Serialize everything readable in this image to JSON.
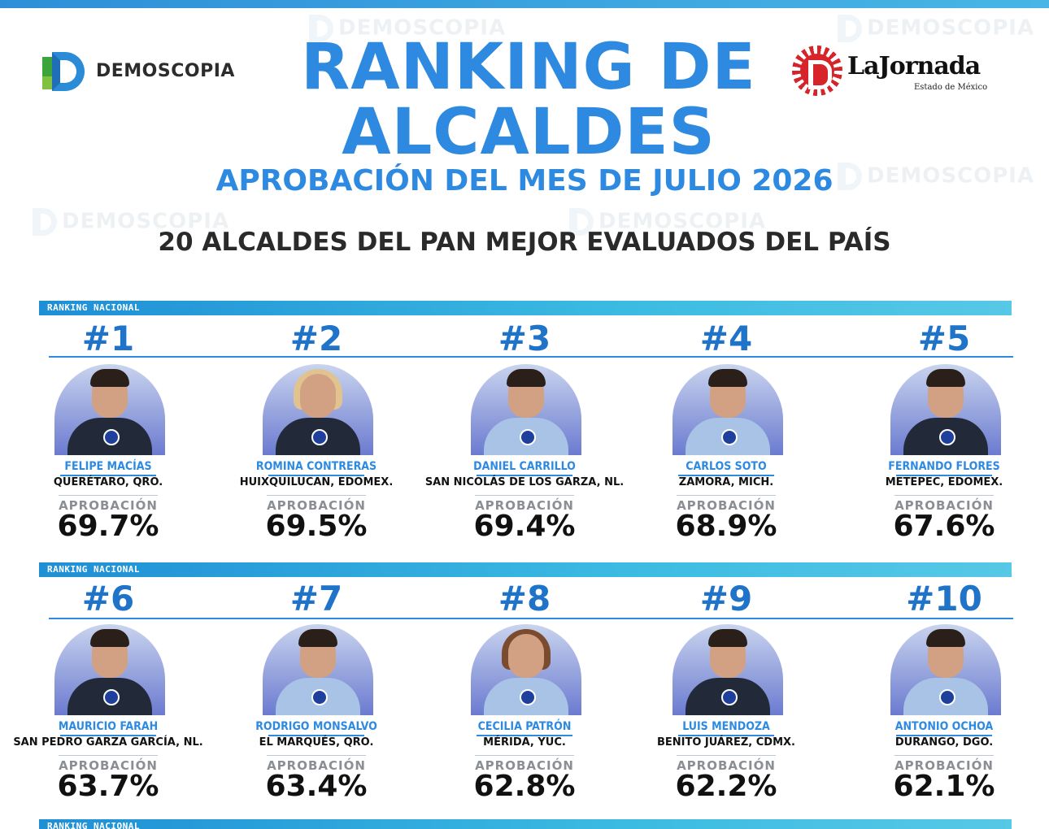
{
  "header": {
    "brand_left": "DEMOSCOPIA",
    "brand_right": "LaJornada",
    "brand_right_sub": "Estado de México",
    "title_line1": "RANKING DE",
    "title_line2": "ALCALDES",
    "subtitle": "APROBACIÓN DEL MES DE JULIO 2026",
    "heading": "20 ALCALDES DEL PAN MEJOR EVALUADOS DEL PAÍS"
  },
  "band_label": "RANKING NACIONAL",
  "watermark": "DEMOSCOPIA",
  "approval_label": "APROBACIÓN",
  "colors": {
    "accent": "#2d8ae0",
    "band": "#3bbbe2",
    "text": "#111111"
  },
  "rows": [
    [
      {
        "rank": "#1",
        "name": "FELIPE MACÍAS",
        "city": "QUERÉTARO, QRO.",
        "approval": "69.7%"
      },
      {
        "rank": "#2",
        "name": "ROMINA CONTRERAS",
        "city": "HUIXQUILUCAN, EDOMEX.",
        "approval": "69.5%"
      },
      {
        "rank": "#3",
        "name": "DANIEL CARRILLO",
        "city": "SAN NICOLÁS DE LOS GARZA, NL.",
        "approval": "69.4%"
      },
      {
        "rank": "#4",
        "name": "CARLOS SOTO",
        "city": "ZAMORA, MICH.",
        "approval": "68.9%"
      },
      {
        "rank": "#5",
        "name": "FERNANDO FLORES",
        "city": "METEPEC, EDOMEX.",
        "approval": "67.6%"
      }
    ],
    [
      {
        "rank": "#6",
        "name": "MAURICIO FARAH",
        "city": "SAN PEDRO GARZA GARCÍA, NL.",
        "approval": "63.7%"
      },
      {
        "rank": "#7",
        "name": "RODRIGO MONSALVO",
        "city": "EL MARQUÉS, QRO.",
        "approval": "63.4%"
      },
      {
        "rank": "#8",
        "name": "CECILIA PATRÓN",
        "city": "MÉRIDA, YUC.",
        "approval": "62.8%"
      },
      {
        "rank": "#9",
        "name": "LUIS MENDOZA",
        "city": "BENITO JUÁREZ, CDMX.",
        "approval": "62.2%"
      },
      {
        "rank": "#10",
        "name": "ANTONIO OCHOA",
        "city": "DURANGO, DGO.",
        "approval": "62.1%"
      }
    ]
  ]
}
